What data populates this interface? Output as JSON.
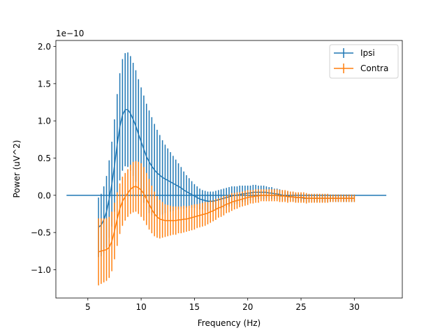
{
  "chart_data": {
    "type": "line",
    "title": "",
    "xlabel": "Frequency (Hz)",
    "ylabel": "Power (uV^2)",
    "y_scale_label": "1e−10",
    "xlim": [
      2.0,
      34.5
    ],
    "ylim": [
      -1.38,
      2.08
    ],
    "x_ticks": [
      5,
      10,
      15,
      20,
      25,
      30
    ],
    "x_tick_labels": [
      "5",
      "10",
      "15",
      "20",
      "25",
      "30"
    ],
    "y_ticks": [
      -1.0,
      -0.5,
      0.0,
      0.5,
      1.0,
      1.5,
      2.0
    ],
    "y_tick_labels": [
      "−1.0",
      "−0.5",
      "0.0",
      "0.5",
      "1.0",
      "1.5",
      "2.0"
    ],
    "grid": false,
    "legend_position": "top-right",
    "zero_line": {
      "x": [
        3,
        33
      ],
      "y": 0,
      "color": "#1f77b4"
    },
    "x": [
      6.0,
      6.25,
      6.5,
      6.75,
      7.0,
      7.25,
      7.5,
      7.75,
      8.0,
      8.25,
      8.5,
      8.75,
      9.0,
      9.25,
      9.5,
      9.75,
      10.0,
      10.25,
      10.5,
      10.75,
      11.0,
      11.25,
      11.5,
      11.75,
      12.0,
      12.25,
      12.5,
      12.75,
      13.0,
      13.25,
      13.5,
      13.75,
      14.0,
      14.25,
      14.5,
      14.75,
      15.0,
      15.25,
      15.5,
      15.75,
      16.0,
      16.25,
      16.5,
      16.75,
      17.0,
      17.25,
      17.5,
      17.75,
      18.0,
      18.25,
      18.5,
      18.75,
      19.0,
      19.25,
      19.5,
      19.75,
      20.0,
      20.25,
      20.5,
      20.75,
      21.0,
      21.25,
      21.5,
      21.75,
      22.0,
      22.25,
      22.5,
      22.75,
      23.0,
      23.25,
      23.5,
      23.75,
      24.0,
      24.25,
      24.5,
      24.75,
      25.0,
      25.25,
      25.5,
      25.75,
      26.0,
      26.25,
      26.5,
      26.75,
      27.0,
      27.25,
      27.5,
      27.75,
      28.0,
      28.25,
      28.5,
      28.75,
      29.0,
      29.25,
      29.5,
      29.75,
      30.0
    ],
    "series": [
      {
        "name": "Ipsi",
        "color": "#1f77b4",
        "values": [
          -0.43,
          -0.4,
          -0.33,
          -0.22,
          -0.05,
          0.15,
          0.4,
          0.68,
          0.92,
          1.08,
          1.15,
          1.15,
          1.1,
          1.02,
          0.93,
          0.82,
          0.72,
          0.62,
          0.52,
          0.45,
          0.39,
          0.34,
          0.3,
          0.27,
          0.24,
          0.22,
          0.2,
          0.18,
          0.16,
          0.14,
          0.12,
          0.1,
          0.07,
          0.05,
          0.03,
          0.01,
          -0.01,
          -0.03,
          -0.05,
          -0.06,
          -0.07,
          -0.08,
          -0.08,
          -0.08,
          -0.07,
          -0.06,
          -0.05,
          -0.04,
          -0.03,
          -0.02,
          -0.01,
          0.0,
          0.0,
          0.01,
          0.02,
          0.02,
          0.03,
          0.03,
          0.04,
          0.04,
          0.04,
          0.04,
          0.04,
          0.04,
          0.03,
          0.03,
          0.02,
          0.02,
          0.01,
          0.0,
          -0.01,
          -0.01,
          -0.02,
          -0.02,
          -0.03,
          -0.03,
          -0.03,
          -0.04,
          -0.04,
          -0.04,
          -0.04,
          -0.04,
          -0.04,
          -0.04,
          -0.04,
          -0.04,
          -0.04,
          -0.04,
          -0.04,
          -0.04,
          -0.04,
          -0.04,
          -0.04,
          -0.04,
          -0.04,
          -0.04,
          -0.04
        ],
        "err": [
          0.4,
          0.42,
          0.45,
          0.48,
          0.52,
          0.57,
          0.62,
          0.68,
          0.72,
          0.75,
          0.76,
          0.77,
          0.77,
          0.76,
          0.75,
          0.74,
          0.73,
          0.72,
          0.71,
          0.69,
          0.66,
          0.62,
          0.58,
          0.54,
          0.5,
          0.46,
          0.43,
          0.4,
          0.37,
          0.34,
          0.31,
          0.28,
          0.25,
          0.22,
          0.2,
          0.18,
          0.16,
          0.15,
          0.14,
          0.13,
          0.13,
          0.13,
          0.13,
          0.13,
          0.13,
          0.13,
          0.13,
          0.13,
          0.13,
          0.13,
          0.13,
          0.12,
          0.12,
          0.12,
          0.11,
          0.11,
          0.1,
          0.1,
          0.1,
          0.1,
          0.09,
          0.09,
          0.09,
          0.08,
          0.08,
          0.08,
          0.07,
          0.07,
          0.07,
          0.07,
          0.06,
          0.06,
          0.06,
          0.06,
          0.06,
          0.05,
          0.05,
          0.05,
          0.05,
          0.05,
          0.05,
          0.05,
          0.05,
          0.05,
          0.05,
          0.05,
          0.05,
          0.05,
          0.05,
          0.05,
          0.05,
          0.05,
          0.05,
          0.05,
          0.05,
          0.05,
          0.05
        ]
      },
      {
        "name": "Contra",
        "color": "#ff7f0e",
        "values": [
          -0.76,
          -0.75,
          -0.74,
          -0.73,
          -0.7,
          -0.62,
          -0.48,
          -0.32,
          -0.18,
          -0.08,
          -0.02,
          0.03,
          0.08,
          0.11,
          0.12,
          0.1,
          0.07,
          0.02,
          -0.05,
          -0.12,
          -0.19,
          -0.25,
          -0.29,
          -0.32,
          -0.33,
          -0.34,
          -0.34,
          -0.34,
          -0.34,
          -0.34,
          -0.33,
          -0.33,
          -0.32,
          -0.32,
          -0.31,
          -0.3,
          -0.29,
          -0.28,
          -0.27,
          -0.26,
          -0.25,
          -0.24,
          -0.22,
          -0.21,
          -0.19,
          -0.17,
          -0.16,
          -0.14,
          -0.12,
          -0.11,
          -0.09,
          -0.08,
          -0.07,
          -0.06,
          -0.05,
          -0.04,
          -0.03,
          -0.02,
          -0.02,
          -0.01,
          -0.01,
          0.0,
          0.0,
          0.0,
          0.0,
          0.0,
          0.0,
          0.0,
          -0.01,
          -0.01,
          -0.01,
          -0.02,
          -0.02,
          -0.02,
          -0.03,
          -0.03,
          -0.03,
          -0.03,
          -0.04,
          -0.04,
          -0.04,
          -0.04,
          -0.04,
          -0.04,
          -0.04,
          -0.04,
          -0.04,
          -0.04,
          -0.04,
          -0.04,
          -0.04,
          -0.04,
          -0.04,
          -0.04,
          -0.04,
          -0.04,
          -0.04
        ],
        "err": [
          0.45,
          0.44,
          0.43,
          0.42,
          0.41,
          0.4,
          0.38,
          0.36,
          0.34,
          0.33,
          0.32,
          0.32,
          0.33,
          0.34,
          0.34,
          0.35,
          0.36,
          0.36,
          0.35,
          0.34,
          0.32,
          0.3,
          0.28,
          0.26,
          0.24,
          0.22,
          0.21,
          0.2,
          0.19,
          0.19,
          0.18,
          0.18,
          0.18,
          0.17,
          0.17,
          0.17,
          0.17,
          0.16,
          0.16,
          0.16,
          0.16,
          0.15,
          0.15,
          0.14,
          0.14,
          0.13,
          0.13,
          0.13,
          0.12,
          0.12,
          0.12,
          0.11,
          0.11,
          0.1,
          0.1,
          0.1,
          0.1,
          0.09,
          0.09,
          0.09,
          0.09,
          0.08,
          0.08,
          0.08,
          0.08,
          0.08,
          0.08,
          0.08,
          0.08,
          0.08,
          0.08,
          0.08,
          0.07,
          0.07,
          0.07,
          0.07,
          0.07,
          0.07,
          0.07,
          0.06,
          0.06,
          0.06,
          0.06,
          0.06,
          0.06,
          0.06,
          0.06,
          0.05,
          0.05,
          0.05,
          0.05,
          0.05,
          0.05,
          0.05,
          0.05,
          0.05,
          0.05
        ]
      }
    ]
  }
}
